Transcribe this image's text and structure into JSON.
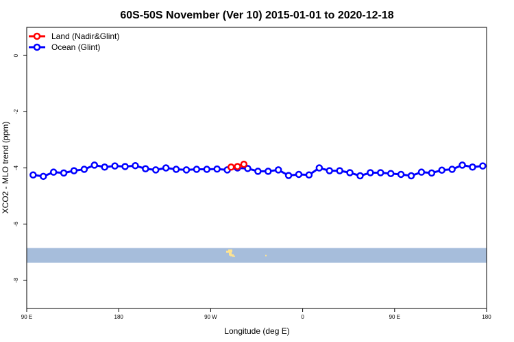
{
  "chart_data": {
    "type": "line",
    "title": "60S-50S November (Ver 10)   2015-01-01 to 2020-12-18",
    "xlabel": "Longitude (deg E)",
    "ylabel": "XCO2 - MLO trend (ppm)",
    "xlim": [
      90,
      450
    ],
    "ylim": [
      -9,
      1
    ],
    "x_ticks": [
      {
        "value": 90,
        "label": "90 E"
      },
      {
        "value": 162,
        "label": "180"
      },
      {
        "value": 234,
        "label": "90 W"
      },
      {
        "value": 306,
        "label": "0"
      },
      {
        "value": 378,
        "label": "90 E"
      },
      {
        "value": 450,
        "label": "180"
      }
    ],
    "y_ticks": [
      {
        "value": 0,
        "label": "0"
      },
      {
        "value": -2,
        "label": "-2"
      },
      {
        "value": -4,
        "label": "-4"
      },
      {
        "value": -6,
        "label": "-6"
      },
      {
        "value": -8,
        "label": "-8"
      }
    ],
    "legend": "top-left",
    "grid": false,
    "series": [
      {
        "name": "Land (Nadir&Glint)",
        "color": "#ff0000",
        "x": [
          250,
          255,
          260
        ],
        "values": [
          -3.97,
          -3.95,
          -3.87
        ]
      },
      {
        "name": "Ocean (Glint)",
        "color": "#0000ff",
        "x": [
          95,
          103,
          111,
          119,
          127,
          135,
          143,
          151,
          159,
          167,
          175,
          183,
          191,
          199,
          207,
          215,
          223,
          231,
          239,
          247,
          255,
          263,
          271,
          279,
          287,
          295,
          303,
          311,
          319,
          327,
          335,
          343,
          351,
          359,
          367,
          375,
          383,
          391,
          399,
          407,
          415,
          423,
          431,
          439,
          447
        ],
        "values": [
          -4.25,
          -4.3,
          -4.15,
          -4.18,
          -4.1,
          -4.05,
          -3.9,
          -3.97,
          -3.93,
          -3.95,
          -3.92,
          -4.03,
          -4.07,
          -4.0,
          -4.05,
          -4.07,
          -4.05,
          -4.05,
          -4.04,
          -4.07,
          -4.0,
          -4.02,
          -4.12,
          -4.12,
          -4.07,
          -4.27,
          -4.23,
          -4.25,
          -4.0,
          -4.1,
          -4.1,
          -4.17,
          -4.28,
          -4.17,
          -4.17,
          -4.2,
          -4.23,
          -4.28,
          -4.15,
          -4.18,
          -4.08,
          -4.05,
          -3.9,
          -3.97,
          -3.93
        ]
      }
    ],
    "map_overlay": {
      "ocean_color": "#a6bddb",
      "land_color": "#fee391",
      "lat_band_y": [
        -6.85,
        -7.37
      ]
    }
  }
}
